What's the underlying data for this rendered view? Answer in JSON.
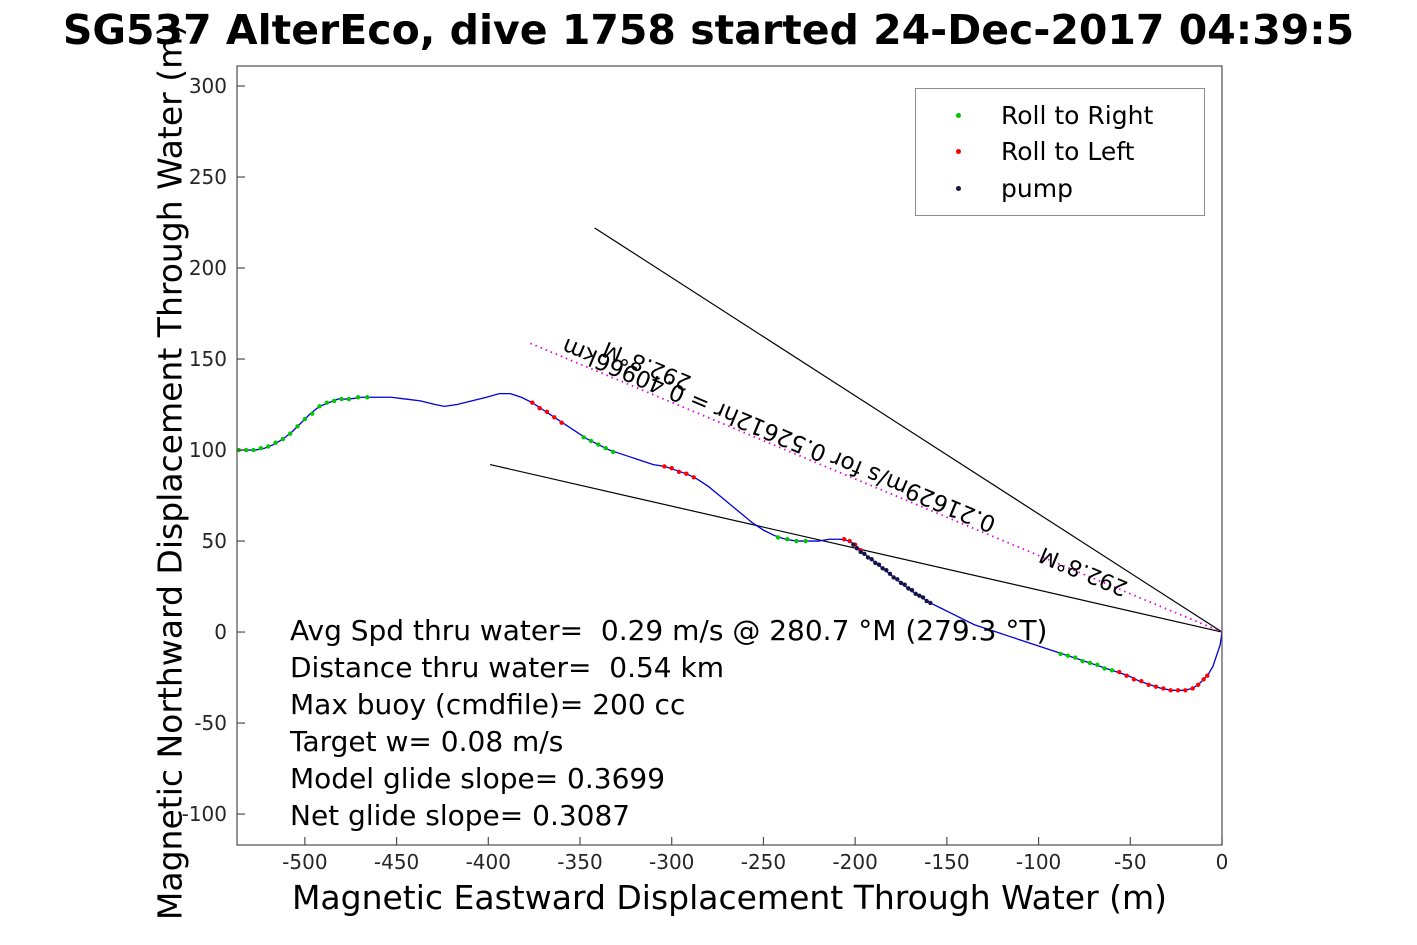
{
  "chart_data": {
    "type": "line",
    "title": "SG537 AlterEco, dive 1758 started 24-Dec-2017 04:39:5",
    "xlabel": "Magnetic Eastward Displacement Through Water (m)",
    "ylabel": "Magnetic Northward Displacement Through Water (m)",
    "xlim": [
      -537,
      0
    ],
    "ylim": [
      -117,
      311
    ],
    "xticks": [
      -500,
      -450,
      -400,
      -350,
      -300,
      -250,
      -200,
      -150,
      -100,
      -50,
      0
    ],
    "yticks": [
      -100,
      -50,
      0,
      50,
      100,
      150,
      200,
      250,
      300
    ],
    "grid": false,
    "legend_position": "top-right",
    "legend": [
      {
        "label": "Roll to Right",
        "color": "#00c800"
      },
      {
        "label": "Roll to Left",
        "color": "#ff0000"
      },
      {
        "label": "pump",
        "color": "#141446"
      }
    ],
    "track_color": "#0000dd",
    "track": [
      [
        -537,
        100
      ],
      [
        -532,
        100
      ],
      [
        -527,
        100
      ],
      [
        -522,
        101
      ],
      [
        -517,
        103
      ],
      [
        -512,
        106
      ],
      [
        -507,
        110
      ],
      [
        -502,
        115
      ],
      [
        -497,
        120
      ],
      [
        -492,
        124
      ],
      [
        -487,
        126
      ],
      [
        -482,
        128
      ],
      [
        -476,
        128
      ],
      [
        -469,
        129
      ],
      [
        -461,
        129
      ],
      [
        -453,
        129
      ],
      [
        -445,
        128
      ],
      [
        -437,
        127
      ],
      [
        -429,
        125
      ],
      [
        -424,
        124
      ],
      [
        -417,
        125
      ],
      [
        -409,
        127
      ],
      [
        -401,
        129
      ],
      [
        -394,
        131
      ],
      [
        -388,
        131
      ],
      [
        -382,
        129
      ],
      [
        -376,
        126
      ],
      [
        -370,
        122
      ],
      [
        -364,
        118
      ],
      [
        -358,
        114
      ],
      [
        -352,
        110
      ],
      [
        -346,
        106
      ],
      [
        -340,
        103
      ],
      [
        -334,
        100
      ],
      [
        -328,
        98
      ],
      [
        -322,
        96
      ],
      [
        -316,
        94
      ],
      [
        -310,
        92
      ],
      [
        -304,
        91
      ],
      [
        -298,
        89
      ],
      [
        -292,
        87
      ],
      [
        -286,
        84
      ],
      [
        -280,
        80
      ],
      [
        -274,
        75
      ],
      [
        -268,
        70
      ],
      [
        -262,
        65
      ],
      [
        -256,
        60
      ],
      [
        -250,
        56
      ],
      [
        -244,
        53
      ],
      [
        -238,
        51
      ],
      [
        -232,
        50
      ],
      [
        -226,
        50
      ],
      [
        -220,
        50
      ],
      [
        -214,
        51
      ],
      [
        -208,
        51
      ],
      [
        -203,
        50
      ],
      [
        -199,
        47
      ],
      [
        -195,
        43
      ],
      [
        -190,
        39
      ],
      [
        -185,
        35
      ],
      [
        -180,
        31
      ],
      [
        -175,
        27
      ],
      [
        -170,
        23
      ],
      [
        -165,
        20
      ],
      [
        -159,
        16
      ],
      [
        -153,
        13
      ],
      [
        -147,
        10
      ],
      [
        -141,
        7
      ],
      [
        -135,
        4
      ],
      [
        -129,
        2
      ],
      [
        -123,
        0
      ],
      [
        -117,
        -2
      ],
      [
        -111,
        -4
      ],
      [
        -105,
        -6
      ],
      [
        -99,
        -8
      ],
      [
        -93,
        -10
      ],
      [
        -87,
        -12
      ],
      [
        -81,
        -14
      ],
      [
        -75,
        -16
      ],
      [
        -69,
        -18
      ],
      [
        -63,
        -20
      ],
      [
        -57,
        -22
      ],
      [
        -51,
        -24
      ],
      [
        -45,
        -27
      ],
      [
        -39,
        -29
      ],
      [
        -33,
        -31
      ],
      [
        -27,
        -32
      ],
      [
        -21,
        -32
      ],
      [
        -16,
        -31
      ],
      [
        -12,
        -28
      ],
      [
        -8,
        -24
      ],
      [
        -5,
        -19
      ],
      [
        -3,
        -13
      ],
      [
        -1,
        -7
      ],
      [
        0,
        0
      ]
    ],
    "markers": [
      {
        "name": "roll-right",
        "color": "#00c800",
        "points": [
          [
            -536,
            100
          ],
          [
            -532,
            100
          ],
          [
            -528,
            100
          ],
          [
            -524,
            101
          ],
          [
            -520,
            102
          ],
          [
            -516,
            104
          ],
          [
            -512,
            106
          ],
          [
            -508,
            109
          ],
          [
            -504,
            113
          ],
          [
            -500,
            117
          ],
          [
            -496,
            120
          ],
          [
            -492,
            124
          ],
          [
            -488,
            126
          ],
          [
            -484,
            127
          ],
          [
            -480,
            128
          ],
          [
            -476,
            128
          ],
          [
            -471,
            129
          ],
          [
            -466,
            129
          ],
          [
            -348,
            107
          ],
          [
            -344,
            105
          ],
          [
            -340,
            103
          ],
          [
            -336,
            101
          ],
          [
            -332,
            99
          ],
          [
            -242,
            52
          ],
          [
            -237,
            51
          ],
          [
            -232,
            50
          ],
          [
            -227,
            50
          ],
          [
            -88,
            -12
          ],
          [
            -84,
            -13
          ],
          [
            -80,
            -14
          ],
          [
            -76,
            -16
          ],
          [
            -72,
            -17
          ],
          [
            -68,
            -18
          ],
          [
            -64,
            -20
          ],
          [
            -60,
            -21
          ]
        ]
      },
      {
        "name": "roll-left",
        "color": "#ff0000",
        "points": [
          [
            -56,
            -22
          ],
          [
            -52,
            -24
          ],
          [
            -48,
            -26
          ],
          [
            -44,
            -27
          ],
          [
            -40,
            -29
          ],
          [
            -36,
            -30
          ],
          [
            -32,
            -31
          ],
          [
            -28,
            -32
          ],
          [
            -24,
            -32
          ],
          [
            -20,
            -32
          ],
          [
            -16,
            -31
          ],
          [
            -13,
            -29
          ],
          [
            -10,
            -26
          ],
          [
            -8,
            -24
          ],
          [
            -206,
            51
          ],
          [
            -203,
            50
          ],
          [
            -200,
            48
          ],
          [
            -197,
            45
          ],
          [
            -304,
            91
          ],
          [
            -300,
            90
          ],
          [
            -296,
            88
          ],
          [
            -292,
            87
          ],
          [
            -288,
            85
          ],
          [
            -376,
            126
          ],
          [
            -372,
            123
          ],
          [
            -368,
            121
          ],
          [
            -364,
            118
          ],
          [
            -360,
            115
          ]
        ]
      },
      {
        "name": "pump",
        "color": "#141446",
        "points": [
          [
            -201,
            48
          ],
          [
            -199,
            46
          ],
          [
            -197,
            44
          ],
          [
            -195,
            43
          ],
          [
            -193,
            41
          ],
          [
            -191,
            40
          ],
          [
            -189,
            38
          ],
          [
            -187,
            37
          ],
          [
            -185,
            35
          ],
          [
            -183,
            34
          ],
          [
            -181,
            32
          ],
          [
            -179,
            30
          ],
          [
            -177,
            29
          ],
          [
            -175,
            27
          ],
          [
            -173,
            26
          ],
          [
            -171,
            24
          ],
          [
            -169,
            23
          ],
          [
            -167,
            21
          ],
          [
            -165,
            20
          ],
          [
            -163,
            19
          ],
          [
            -161,
            17
          ],
          [
            -159,
            16
          ]
        ]
      }
    ],
    "ref_lines": [
      {
        "from": [
          0,
          0
        ],
        "to": [
          -342,
          222
        ],
        "color": "#000000"
      },
      {
        "from": [
          0,
          0
        ],
        "to": [
          -399,
          92
        ],
        "color": "#000000"
      }
    ],
    "bearing_line": {
      "from": [
        0,
        0
      ],
      "to": [
        -377.5,
        158.8
      ],
      "color": "#e100e1",
      "style": "dotted"
    },
    "annotations": [
      {
        "text": "0.21629m/s for 0.52612hr = 0.40966km",
        "x": -240,
        "y": 112,
        "rotation": -157.3,
        "size": 23
      },
      {
        "text": "292.8°M",
        "x": -312,
        "y": 150,
        "rotation": -157.3,
        "size": 22
      },
      {
        "text": "292.8°M",
        "x": -74,
        "y": 37,
        "rotation": -157.3,
        "size": 22
      }
    ],
    "stats": [
      "Avg Spd thru water=  0.29 m/s @ 280.7 °M (279.3 °T)",
      "Distance thru water=  0.54 km",
      "Max buoy (cmdfile)= 200 cc",
      "Target w= 0.08 m/s",
      "Model glide slope= 0.3699",
      "Net glide slope= 0.3087"
    ]
  }
}
